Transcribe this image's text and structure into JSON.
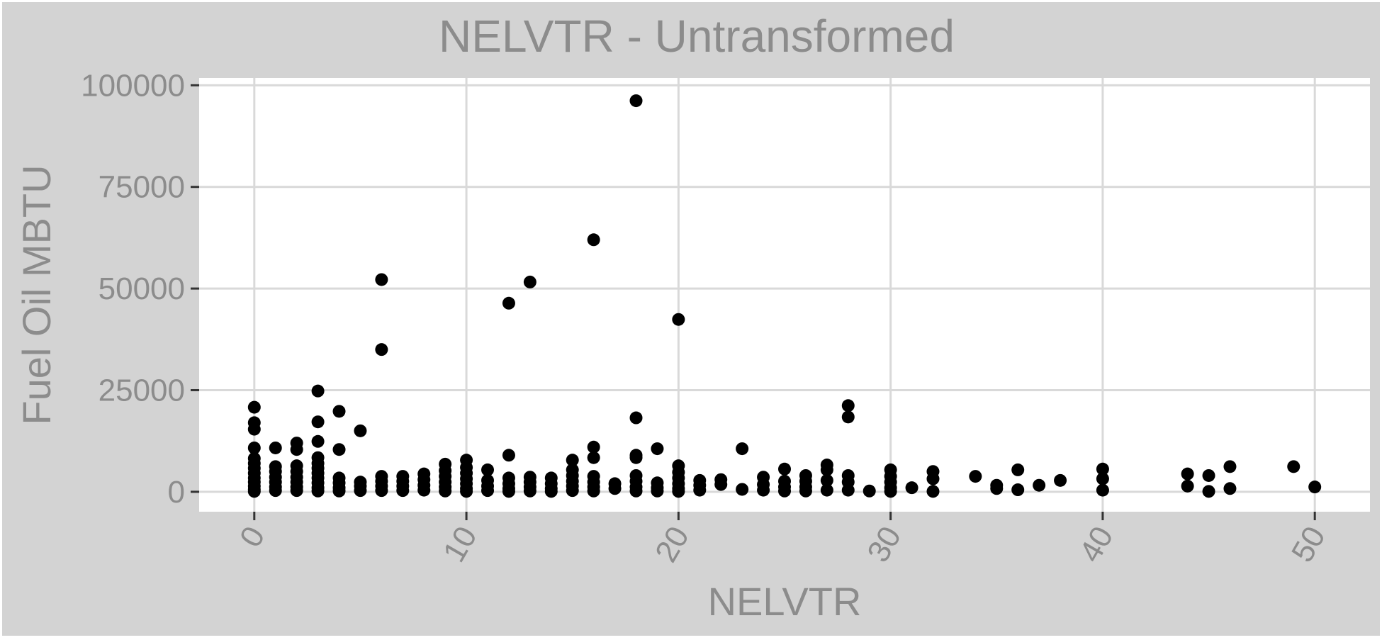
{
  "chart_data": {
    "type": "scatter",
    "title": "NELVTR - Untransformed",
    "xlabel": "NELVTR",
    "ylabel": "Fuel Oil MBTU",
    "xlim": [
      -2.6,
      52.6
    ],
    "ylim": [
      -4900,
      101800
    ],
    "xticks": [
      0,
      10,
      20,
      30,
      40,
      50
    ],
    "xtick_labels": [
      "0",
      "10",
      "20",
      "30",
      "40",
      "50"
    ],
    "yticks": [
      0,
      25000,
      50000,
      75000,
      100000
    ],
    "ytick_labels": [
      "0",
      "25000",
      "50000",
      "75000",
      "100000"
    ],
    "grid": true,
    "legend": "none",
    "colors": {
      "panel": "#ffffff",
      "background": "#d3d3d3",
      "grid": "#d9d9d9",
      "point": "#000000",
      "text": "#8c8c8c"
    },
    "points": [
      {
        "x": 0,
        "y": 20800
      },
      {
        "x": 0,
        "y": 17000
      },
      {
        "x": 0,
        "y": 15400
      },
      {
        "x": 0,
        "y": 10800
      },
      {
        "x": 0,
        "y": 8200
      },
      {
        "x": 0,
        "y": 7000
      },
      {
        "x": 0,
        "y": 5800
      },
      {
        "x": 0,
        "y": 4600
      },
      {
        "x": 0,
        "y": 3400
      },
      {
        "x": 0,
        "y": 2400
      },
      {
        "x": 0,
        "y": 1400
      },
      {
        "x": 0,
        "y": 600
      },
      {
        "x": 0,
        "y": 100
      },
      {
        "x": 1,
        "y": 10800
      },
      {
        "x": 1,
        "y": 6200
      },
      {
        "x": 1,
        "y": 5000
      },
      {
        "x": 1,
        "y": 3600
      },
      {
        "x": 1,
        "y": 2400
      },
      {
        "x": 1,
        "y": 1200
      },
      {
        "x": 1,
        "y": 300
      },
      {
        "x": 2,
        "y": 12000
      },
      {
        "x": 2,
        "y": 10400
      },
      {
        "x": 2,
        "y": 6400
      },
      {
        "x": 2,
        "y": 5000
      },
      {
        "x": 2,
        "y": 3600
      },
      {
        "x": 2,
        "y": 2400
      },
      {
        "x": 2,
        "y": 1200
      },
      {
        "x": 2,
        "y": 300
      },
      {
        "x": 3,
        "y": 24800
      },
      {
        "x": 3,
        "y": 17200
      },
      {
        "x": 3,
        "y": 12400
      },
      {
        "x": 3,
        "y": 8400
      },
      {
        "x": 3,
        "y": 7000
      },
      {
        "x": 3,
        "y": 5800
      },
      {
        "x": 3,
        "y": 4600
      },
      {
        "x": 3,
        "y": 3400
      },
      {
        "x": 3,
        "y": 2200
      },
      {
        "x": 3,
        "y": 1000
      },
      {
        "x": 3,
        "y": 200
      },
      {
        "x": 4,
        "y": 19800
      },
      {
        "x": 4,
        "y": 10400
      },
      {
        "x": 4,
        "y": 3400
      },
      {
        "x": 4,
        "y": 2200
      },
      {
        "x": 4,
        "y": 1000
      },
      {
        "x": 4,
        "y": 200
      },
      {
        "x": 5,
        "y": 15000
      },
      {
        "x": 5,
        "y": 2400
      },
      {
        "x": 5,
        "y": 1400
      },
      {
        "x": 5,
        "y": 300
      },
      {
        "x": 6,
        "y": 52200
      },
      {
        "x": 6,
        "y": 35000
      },
      {
        "x": 6,
        "y": 3800
      },
      {
        "x": 6,
        "y": 2600
      },
      {
        "x": 6,
        "y": 1400
      },
      {
        "x": 6,
        "y": 300
      },
      {
        "x": 7,
        "y": 3800
      },
      {
        "x": 7,
        "y": 2600
      },
      {
        "x": 7,
        "y": 1400
      },
      {
        "x": 7,
        "y": 300
      },
      {
        "x": 8,
        "y": 4400
      },
      {
        "x": 8,
        "y": 3000
      },
      {
        "x": 8,
        "y": 1600
      },
      {
        "x": 8,
        "y": 400
      },
      {
        "x": 9,
        "y": 6800
      },
      {
        "x": 9,
        "y": 5200
      },
      {
        "x": 9,
        "y": 3800
      },
      {
        "x": 9,
        "y": 2400
      },
      {
        "x": 9,
        "y": 1200
      },
      {
        "x": 9,
        "y": 200
      },
      {
        "x": 10,
        "y": 7800
      },
      {
        "x": 10,
        "y": 6000
      },
      {
        "x": 10,
        "y": 4600
      },
      {
        "x": 10,
        "y": 3200
      },
      {
        "x": 10,
        "y": 2000
      },
      {
        "x": 10,
        "y": 800
      },
      {
        "x": 10,
        "y": 100
      },
      {
        "x": 11,
        "y": 5400
      },
      {
        "x": 11,
        "y": 2800
      },
      {
        "x": 11,
        "y": 1400
      },
      {
        "x": 11,
        "y": 300
      },
      {
        "x": 12,
        "y": 46400
      },
      {
        "x": 12,
        "y": 9000
      },
      {
        "x": 12,
        "y": 3400
      },
      {
        "x": 12,
        "y": 2000
      },
      {
        "x": 12,
        "y": 800
      },
      {
        "x": 12,
        "y": 100
      },
      {
        "x": 13,
        "y": 51600
      },
      {
        "x": 13,
        "y": 3600
      },
      {
        "x": 13,
        "y": 2400
      },
      {
        "x": 13,
        "y": 1200
      },
      {
        "x": 13,
        "y": 200
      },
      {
        "x": 14,
        "y": 3400
      },
      {
        "x": 14,
        "y": 2000
      },
      {
        "x": 14,
        "y": 800
      },
      {
        "x": 14,
        "y": 100
      },
      {
        "x": 15,
        "y": 7800
      },
      {
        "x": 15,
        "y": 5400
      },
      {
        "x": 15,
        "y": 4000
      },
      {
        "x": 15,
        "y": 2600
      },
      {
        "x": 15,
        "y": 1400
      },
      {
        "x": 15,
        "y": 300
      },
      {
        "x": 16,
        "y": 62000
      },
      {
        "x": 16,
        "y": 11000
      },
      {
        "x": 16,
        "y": 8400
      },
      {
        "x": 16,
        "y": 3800
      },
      {
        "x": 16,
        "y": 2400
      },
      {
        "x": 16,
        "y": 1200
      },
      {
        "x": 16,
        "y": 200
      },
      {
        "x": 17,
        "y": 2000
      },
      {
        "x": 17,
        "y": 800
      },
      {
        "x": 18,
        "y": 96200
      },
      {
        "x": 18,
        "y": 18200
      },
      {
        "x": 18,
        "y": 9000
      },
      {
        "x": 18,
        "y": 8400
      },
      {
        "x": 18,
        "y": 4000
      },
      {
        "x": 18,
        "y": 2600
      },
      {
        "x": 18,
        "y": 1200
      },
      {
        "x": 18,
        "y": 200
      },
      {
        "x": 19,
        "y": 10600
      },
      {
        "x": 19,
        "y": 2200
      },
      {
        "x": 19,
        "y": 1000
      },
      {
        "x": 19,
        "y": 200
      },
      {
        "x": 20,
        "y": 42400
      },
      {
        "x": 20,
        "y": 6400
      },
      {
        "x": 20,
        "y": 4800
      },
      {
        "x": 20,
        "y": 3400
      },
      {
        "x": 20,
        "y": 2000
      },
      {
        "x": 20,
        "y": 800
      },
      {
        "x": 20,
        "y": 100
      },
      {
        "x": 21,
        "y": 2800
      },
      {
        "x": 21,
        "y": 1600
      },
      {
        "x": 21,
        "y": 400
      },
      {
        "x": 22,
        "y": 3000
      },
      {
        "x": 22,
        "y": 1800
      },
      {
        "x": 23,
        "y": 10600
      },
      {
        "x": 23,
        "y": 600
      },
      {
        "x": 24,
        "y": 3600
      },
      {
        "x": 24,
        "y": 1800
      },
      {
        "x": 24,
        "y": 400
      },
      {
        "x": 25,
        "y": 5600
      },
      {
        "x": 25,
        "y": 2600
      },
      {
        "x": 25,
        "y": 1200
      },
      {
        "x": 25,
        "y": 200
      },
      {
        "x": 26,
        "y": 4000
      },
      {
        "x": 26,
        "y": 2600
      },
      {
        "x": 26,
        "y": 1200
      },
      {
        "x": 26,
        "y": 200
      },
      {
        "x": 27,
        "y": 6600
      },
      {
        "x": 27,
        "y": 5400
      },
      {
        "x": 27,
        "y": 2800
      },
      {
        "x": 27,
        "y": 400
      },
      {
        "x": 28,
        "y": 21200
      },
      {
        "x": 28,
        "y": 18400
      },
      {
        "x": 28,
        "y": 4000
      },
      {
        "x": 28,
        "y": 2400
      },
      {
        "x": 28,
        "y": 400
      },
      {
        "x": 29,
        "y": 200
      },
      {
        "x": 30,
        "y": 5400
      },
      {
        "x": 30,
        "y": 3800
      },
      {
        "x": 30,
        "y": 2400
      },
      {
        "x": 30,
        "y": 1000
      },
      {
        "x": 30,
        "y": 100
      },
      {
        "x": 31,
        "y": 1000
      },
      {
        "x": 32,
        "y": 5000
      },
      {
        "x": 32,
        "y": 3200
      },
      {
        "x": 32,
        "y": 100
      },
      {
        "x": 34,
        "y": 3800
      },
      {
        "x": 35,
        "y": 1600
      },
      {
        "x": 35,
        "y": 800
      },
      {
        "x": 36,
        "y": 5400
      },
      {
        "x": 36,
        "y": 500
      },
      {
        "x": 37,
        "y": 1600
      },
      {
        "x": 38,
        "y": 2800
      },
      {
        "x": 40,
        "y": 5600
      },
      {
        "x": 40,
        "y": 3200
      },
      {
        "x": 40,
        "y": 400
      },
      {
        "x": 44,
        "y": 4400
      },
      {
        "x": 44,
        "y": 1400
      },
      {
        "x": 45,
        "y": 4000
      },
      {
        "x": 45,
        "y": 100
      },
      {
        "x": 46,
        "y": 6200
      },
      {
        "x": 46,
        "y": 800
      },
      {
        "x": 49,
        "y": 6200
      },
      {
        "x": 50,
        "y": 1200
      }
    ]
  }
}
